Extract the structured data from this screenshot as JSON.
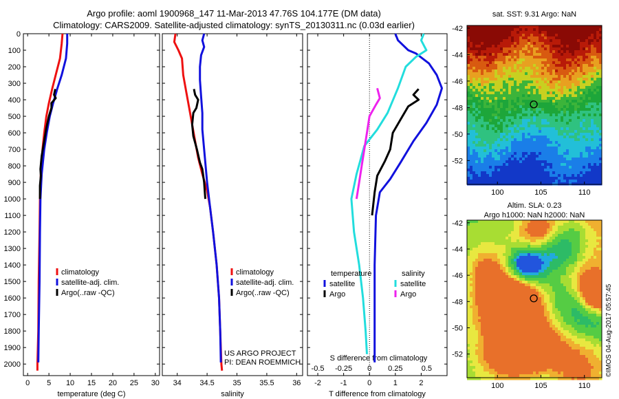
{
  "header": {
    "line1": "Argo profile: aoml 1900968_147 11-Mar-2013 47.76S 104.177E (DM data)",
    "line2": "Climatology: CARS2009. Satellite-adjusted climatology: synTS_20130311.nc (0.03d earlier)"
  },
  "footer_stamp": "©IMOS 04-Aug-2017 05:57:45",
  "colors": {
    "climatology": "#ee1111",
    "satellite": "#1111dd",
    "argo": "#000000",
    "argo_salinity_diff": "#ee22ee",
    "satellite_salinity_diff": "#22dddd"
  },
  "chart_data": [
    {
      "type": "line",
      "id": "temperature",
      "xlabel": "temperature (deg C)",
      "ylabel": "",
      "xlim": [
        -1,
        31
      ],
      "ylim": [
        2070,
        0
      ],
      "xticks": [
        0,
        5,
        10,
        15,
        20,
        25,
        30
      ],
      "yticks": [
        0,
        100,
        200,
        300,
        400,
        500,
        600,
        700,
        800,
        900,
        1000,
        1100,
        1200,
        1300,
        1400,
        1500,
        1600,
        1700,
        1800,
        1900,
        2000
      ],
      "legend": [
        "climatology",
        "satellite-adj. clim.",
        "Argo(..raw -QC)"
      ],
      "legend_position": "lower-center",
      "series": [
        {
          "name": "climatology",
          "color": "#ee1111",
          "points": [
            [
              8.2,
              0
            ],
            [
              8.0,
              60
            ],
            [
              7.6,
              150
            ],
            [
              6.6,
              250
            ],
            [
              5.8,
              330
            ],
            [
              5.0,
              420
            ],
            [
              4.4,
              500
            ],
            [
              3.9,
              600
            ],
            [
              3.5,
              700
            ],
            [
              3.1,
              850
            ],
            [
              2.9,
              1000
            ],
            [
              2.8,
              1200
            ],
            [
              2.6,
              1500
            ],
            [
              2.5,
              1800
            ],
            [
              2.3,
              2000
            ],
            [
              2.3,
              2040
            ]
          ]
        },
        {
          "name": "satellite-adj. clim.",
          "color": "#1111dd",
          "points": [
            [
              9.3,
              0
            ],
            [
              9.3,
              60
            ],
            [
              9.0,
              150
            ],
            [
              8.0,
              250
            ],
            [
              7.0,
              330
            ],
            [
              6.0,
              420
            ],
            [
              5.2,
              500
            ],
            [
              4.5,
              600
            ],
            [
              3.9,
              700
            ],
            [
              3.3,
              850
            ],
            [
              3.0,
              1000
            ],
            [
              2.9,
              1200
            ],
            [
              2.8,
              1500
            ],
            [
              2.6,
              1800
            ],
            [
              2.5,
              1990
            ]
          ]
        },
        {
          "name": "Argo(..raw -QC)",
          "color": "#000000",
          "points": [
            [
              6.5,
              335
            ],
            [
              6.2,
              370
            ],
            [
              6.6,
              390
            ],
            [
              5.6,
              420
            ],
            [
              5.6,
              450
            ],
            [
              5.0,
              500
            ],
            [
              4.4,
              570
            ],
            [
              4.2,
              600
            ],
            [
              3.9,
              650
            ],
            [
              3.3,
              740
            ],
            [
              3.0,
              820
            ],
            [
              3.1,
              860
            ],
            [
              2.9,
              920
            ],
            [
              2.9,
              1000
            ]
          ]
        }
      ]
    },
    {
      "type": "line",
      "id": "salinity",
      "xlabel": "salinity",
      "ylabel": "",
      "xlim": [
        33.75,
        36.1
      ],
      "ylim": [
        2070,
        0
      ],
      "xticks": [
        34,
        34.5,
        35,
        35.5,
        36
      ],
      "legend": [
        "climatology",
        "satellite-adj. clim.",
        "Argo(..raw -QC)"
      ],
      "legend_position": "lower-center",
      "annotation": [
        "US ARGO PROJECT",
        "PI: DEAN ROEMMICH"
      ],
      "series": [
        {
          "name": "climatology",
          "color": "#ee1111",
          "points": [
            [
              33.97,
              0
            ],
            [
              33.95,
              50
            ],
            [
              34.02,
              100
            ],
            [
              34.08,
              150
            ],
            [
              34.1,
              250
            ],
            [
              34.15,
              350
            ],
            [
              34.2,
              450
            ],
            [
              34.25,
              550
            ],
            [
              34.3,
              650
            ],
            [
              34.35,
              750
            ],
            [
              34.42,
              850
            ],
            [
              34.5,
              950
            ],
            [
              34.55,
              1050
            ],
            [
              34.6,
              1200
            ],
            [
              34.66,
              1400
            ],
            [
              34.7,
              1600
            ],
            [
              34.72,
              1800
            ],
            [
              34.74,
              2000
            ],
            [
              34.75,
              2040
            ]
          ]
        },
        {
          "name": "satellite-adj. clim.",
          "color": "#1111dd",
          "points": [
            [
              34.45,
              0
            ],
            [
              34.42,
              40
            ],
            [
              34.45,
              80
            ],
            [
              34.4,
              130
            ],
            [
              34.38,
              200
            ],
            [
              34.38,
              280
            ],
            [
              34.4,
              380
            ],
            [
              34.42,
              480
            ],
            [
              34.42,
              580
            ],
            [
              34.45,
              700
            ],
            [
              34.5,
              900
            ],
            [
              34.55,
              1050
            ],
            [
              34.6,
              1200
            ],
            [
              34.66,
              1400
            ],
            [
              34.7,
              1600
            ],
            [
              34.72,
              1800
            ],
            [
              34.73,
              1990
            ]
          ]
        },
        {
          "name": "Argo(..raw -QC)",
          "color": "#000000",
          "points": [
            [
              34.28,
              335
            ],
            [
              34.3,
              370
            ],
            [
              34.35,
              400
            ],
            [
              34.32,
              450
            ],
            [
              34.27,
              480
            ],
            [
              34.25,
              550
            ],
            [
              34.27,
              620
            ],
            [
              34.33,
              700
            ],
            [
              34.38,
              780
            ],
            [
              34.42,
              820
            ],
            [
              34.45,
              900
            ],
            [
              34.47,
              1000
            ]
          ]
        }
      ]
    },
    {
      "type": "line",
      "id": "difference",
      "xlabel": "T difference from climatology",
      "ylabel": "",
      "xlim": [
        -2.4,
        3.0
      ],
      "ylim": [
        2070,
        0
      ],
      "xticks": [
        -2,
        -1,
        0,
        1,
        2
      ],
      "secondary_xlabel": "S difference from climatology",
      "secondary_xticks": [
        "-0.5",
        "-0.25",
        "0",
        "0.25",
        "0.5"
      ],
      "secondary_xtick_positions": [
        -2,
        -1,
        0,
        1,
        2
      ],
      "legend": [
        "temperature",
        "satellite",
        "Argo",
        "salinity",
        "satellite",
        "Argo"
      ],
      "legend_position": "lower-center",
      "series": [
        {
          "name": "satellite",
          "group": "temperature",
          "color": "#1111dd",
          "points": [
            [
              1.0,
              0
            ],
            [
              1.1,
              40
            ],
            [
              1.5,
              100
            ],
            [
              1.8,
              120
            ],
            [
              2.3,
              180
            ],
            [
              2.6,
              250
            ],
            [
              2.8,
              330
            ],
            [
              2.6,
              430
            ],
            [
              2.2,
              540
            ],
            [
              1.7,
              650
            ],
            [
              1.2,
              780
            ],
            [
              0.8,
              880
            ],
            [
              0.4,
              960
            ],
            [
              0.25,
              1100
            ],
            [
              0.2,
              1400
            ],
            [
              0.2,
              1700
            ],
            [
              0.2,
              1990
            ]
          ]
        },
        {
          "name": "Argo",
          "group": "temperature",
          "color": "#000000",
          "points": [
            [
              1.9,
              335
            ],
            [
              1.7,
              370
            ],
            [
              1.9,
              400
            ],
            [
              1.5,
              440
            ],
            [
              1.2,
              520
            ],
            [
              0.9,
              600
            ],
            [
              0.8,
              700
            ],
            [
              0.6,
              770
            ],
            [
              0.3,
              860
            ],
            [
              0.2,
              960
            ],
            [
              0.1,
              1100
            ]
          ]
        },
        {
          "name": "satellite",
          "group": "salinity",
          "color": "#22dddd",
          "points": [
            [
              2.1,
              0
            ],
            [
              2.0,
              40
            ],
            [
              2.2,
              100
            ],
            [
              1.8,
              140
            ],
            [
              1.4,
              200
            ],
            [
              1.1,
              330
            ],
            [
              0.7,
              480
            ],
            [
              0.3,
              580
            ],
            [
              -0.2,
              680
            ],
            [
              -0.5,
              850
            ],
            [
              -0.7,
              1000
            ],
            [
              -0.6,
              1200
            ],
            [
              -0.4,
              1400
            ],
            [
              -0.25,
              1600
            ],
            [
              -0.15,
              1800
            ],
            [
              -0.1,
              1940
            ]
          ]
        },
        {
          "name": "Argo",
          "group": "salinity",
          "color": "#ee22ee",
          "points": [
            [
              0.3,
              330
            ],
            [
              0.4,
              390
            ],
            [
              0.25,
              430
            ],
            [
              0.0,
              500
            ],
            [
              -0.1,
              600
            ],
            [
              -0.2,
              700
            ],
            [
              -0.3,
              800
            ],
            [
              -0.4,
              900
            ],
            [
              -0.5,
              1000
            ]
          ]
        }
      ]
    },
    {
      "type": "heatmap",
      "id": "sst_map",
      "title": "sat. SST: 9.31  Argo: NaN",
      "xticks": [
        100,
        105,
        110
      ],
      "yticks": [
        -42,
        -44,
        -46,
        -48,
        -50,
        -52
      ],
      "xlim": [
        96.5,
        112
      ],
      "ylim": [
        -53.8,
        -41.8
      ],
      "marker": {
        "lon": 104.177,
        "lat": -47.76
      }
    },
    {
      "type": "heatmap",
      "id": "sla_map",
      "title": "Altim. SLA: 0.23\nArgo h1000: NaN h2000: NaN",
      "title_lines": [
        "Altim. SLA: 0.23",
        "Argo h1000: NaN h2000: NaN"
      ],
      "xticks": [
        100,
        105,
        110
      ],
      "yticks": [
        -42,
        -44,
        -46,
        -48,
        -50,
        -52
      ],
      "xlim": [
        96.5,
        112
      ],
      "ylim": [
        -53.8,
        -41.8
      ],
      "marker": {
        "lon": 104.177,
        "lat": -47.76
      }
    }
  ]
}
